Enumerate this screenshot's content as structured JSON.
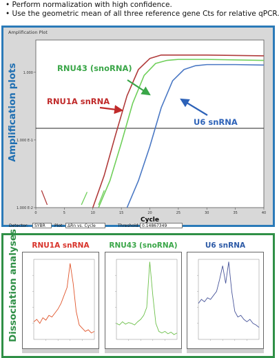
{
  "bullets": [
    "Perform normalization with high confidence.",
    "Use the geometric mean of all three reference gene Cts for relative qPCR."
  ],
  "amplification": {
    "side_label": "Amplification plots",
    "window_title": "Amplification Plot",
    "x_label": "Cycle",
    "x_ticks": [
      "0",
      "5",
      "10",
      "15",
      "20",
      "25",
      "30",
      "35",
      "40"
    ],
    "y_ticks": [
      "1.000",
      "1.000 E-1",
      "1.000 E-2"
    ],
    "labels": {
      "rnu43": "RNU43 (snoRNA)",
      "rnu1a": "RNU1A snRNA",
      "u6": "U6 snRNA"
    },
    "controls": {
      "detector_label": "Detector:",
      "detector_value": "SYBR",
      "plot_label": "Plot:",
      "plot_value": "ΔRn vs. Cycle",
      "threshold_label": "Threshold:",
      "threshold_value": "0.14867349"
    }
  },
  "dissociation": {
    "side_label": "Dissociation analyses",
    "titles": {
      "rnu1a": "RNU1A snRNA",
      "rnu43": "RNU43 (snoRNA)",
      "u6": "U6 snRNA"
    }
  },
  "chart_data": [
    {
      "type": "line",
      "title": "Amplification Plot",
      "xlabel": "Cycle",
      "ylabel": "",
      "xlim": [
        0,
        40
      ],
      "y_scale": "log",
      "ylim": [
        0.01,
        3
      ],
      "threshold": 0.14867349,
      "series": [
        {
          "name": "RNU1A snRNA",
          "color": "#b03a3a",
          "x": [
            10,
            12,
            14,
            16,
            18,
            20,
            22,
            24,
            30,
            40
          ],
          "y": [
            0.01,
            0.03,
            0.12,
            0.45,
            1.1,
            1.6,
            1.8,
            1.8,
            1.8,
            1.75
          ]
        },
        {
          "name": "RNU43 (snoRNA)",
          "color": "#6fcf5a",
          "x": [
            11,
            13,
            15,
            17,
            19,
            21,
            23,
            25,
            30,
            40
          ],
          "y": [
            0.01,
            0.025,
            0.09,
            0.35,
            0.9,
            1.35,
            1.5,
            1.55,
            1.55,
            1.5
          ]
        },
        {
          "name": "U6 snRNA",
          "color": "#4a78c4",
          "x": [
            16,
            18,
            20,
            22,
            24,
            26,
            28,
            30,
            35,
            40
          ],
          "y": [
            0.01,
            0.025,
            0.08,
            0.3,
            0.75,
            1.1,
            1.25,
            1.3,
            1.3,
            1.28
          ]
        }
      ]
    },
    {
      "type": "line",
      "title": "RNU1A snRNA",
      "series": [
        {
          "name": "RNU1A snRNA",
          "color": "#e0552b",
          "x": [
            0,
            5,
            10,
            15,
            20,
            25,
            30,
            35,
            40,
            45,
            50,
            55,
            60,
            65,
            70,
            75,
            80,
            85,
            90,
            95,
            100
          ],
          "y": [
            0.22,
            0.25,
            0.2,
            0.27,
            0.24,
            0.3,
            0.28,
            0.33,
            0.38,
            0.45,
            0.55,
            0.65,
            0.95,
            0.7,
            0.35,
            0.18,
            0.14,
            0.1,
            0.12,
            0.08,
            0.1
          ]
        }
      ]
    },
    {
      "type": "line",
      "title": "RNU43 (snoRNA)",
      "series": [
        {
          "name": "RNU43 (snoRNA)",
          "color": "#6cc04a",
          "x": [
            0,
            5,
            10,
            15,
            20,
            25,
            30,
            35,
            40,
            45,
            50,
            55,
            60,
            65,
            70,
            75,
            80,
            85,
            90,
            95,
            100
          ],
          "y": [
            0.2,
            0.18,
            0.22,
            0.19,
            0.21,
            0.2,
            0.18,
            0.22,
            0.25,
            0.3,
            0.4,
            0.97,
            0.55,
            0.2,
            0.1,
            0.08,
            0.1,
            0.07,
            0.09,
            0.06,
            0.08
          ]
        }
      ]
    },
    {
      "type": "line",
      "title": "U6 snRNA",
      "series": [
        {
          "name": "U6 snRNA",
          "color": "#48559a",
          "x": [
            0,
            5,
            10,
            15,
            20,
            25,
            30,
            35,
            40,
            45,
            50,
            55,
            60,
            65,
            70,
            75,
            80,
            85,
            90,
            95,
            100
          ],
          "y": [
            0.45,
            0.5,
            0.47,
            0.52,
            0.5,
            0.55,
            0.6,
            0.75,
            0.92,
            0.7,
            0.97,
            0.6,
            0.35,
            0.28,
            0.3,
            0.25,
            0.22,
            0.25,
            0.2,
            0.18,
            0.15
          ]
        }
      ]
    }
  ]
}
